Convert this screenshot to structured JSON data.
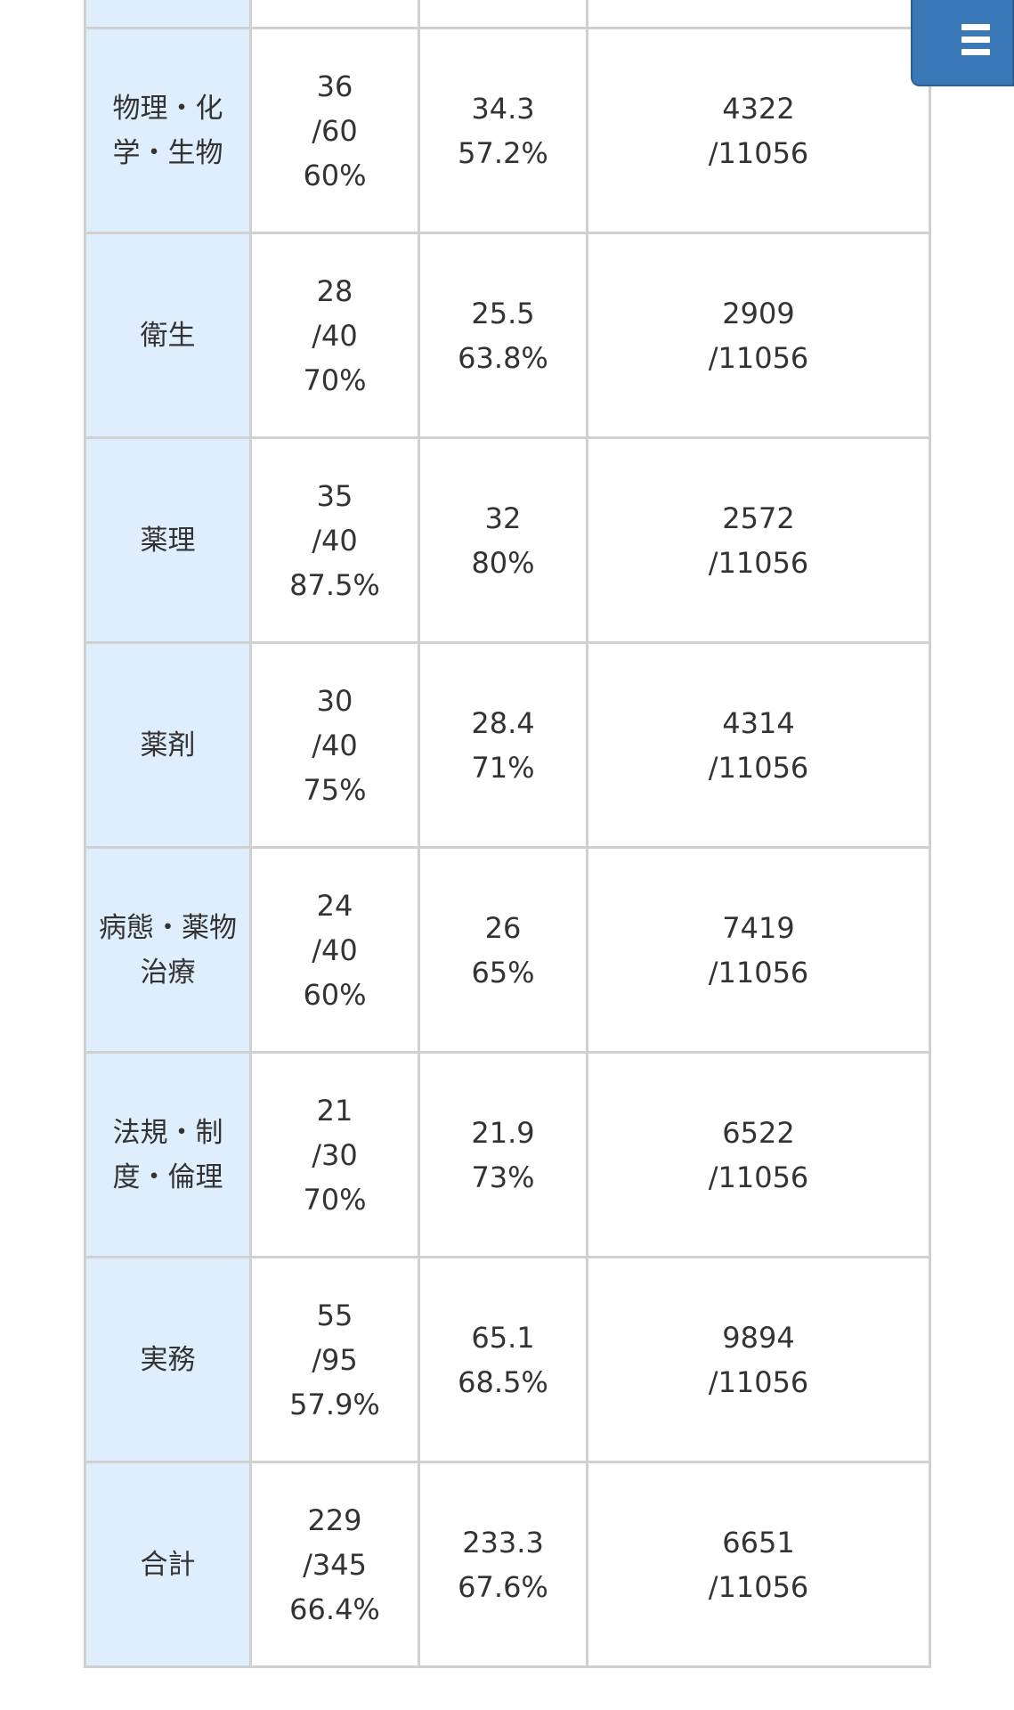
{
  "rows": [
    {
      "subject": [
        "",
        ""
      ],
      "score": [
        "",
        "",
        ""
      ],
      "average": [
        "",
        ""
      ],
      "rank": [
        "",
        ""
      ]
    },
    {
      "subject": [
        "物理・化",
        "学・生物"
      ],
      "score": [
        "36",
        "/60",
        "60%"
      ],
      "average": [
        "34.3",
        "57.2%"
      ],
      "rank": [
        "4322",
        "/11056"
      ]
    },
    {
      "subject": [
        "衛生",
        ""
      ],
      "score": [
        "28",
        "/40",
        "70%"
      ],
      "average": [
        "25.5",
        "63.8%"
      ],
      "rank": [
        "2909",
        "/11056"
      ]
    },
    {
      "subject": [
        "薬理",
        ""
      ],
      "score": [
        "35",
        "/40",
        "87.5%"
      ],
      "average": [
        "32",
        "80%"
      ],
      "rank": [
        "2572",
        "/11056"
      ]
    },
    {
      "subject": [
        "薬剤",
        ""
      ],
      "score": [
        "30",
        "/40",
        "75%"
      ],
      "average": [
        "28.4",
        "71%"
      ],
      "rank": [
        "4314",
        "/11056"
      ]
    },
    {
      "subject": [
        "病態・薬物",
        "治療"
      ],
      "score": [
        "24",
        "/40",
        "60%"
      ],
      "average": [
        "26",
        "65%"
      ],
      "rank": [
        "7419",
        "/11056"
      ]
    },
    {
      "subject": [
        "法規・制",
        "度・倫理"
      ],
      "score": [
        "21",
        "/30",
        "70%"
      ],
      "average": [
        "21.9",
        "73%"
      ],
      "rank": [
        "6522",
        "/11056"
      ]
    },
    {
      "subject": [
        "実務",
        ""
      ],
      "score": [
        "55",
        "/95",
        "57.9%"
      ],
      "average": [
        "65.1",
        "68.5%"
      ],
      "rank": [
        "9894",
        "/11056"
      ]
    },
    {
      "subject": [
        "合計",
        ""
      ],
      "score": [
        "229",
        "/345",
        "66.4%"
      ],
      "average": [
        "233.3",
        "67.6%"
      ],
      "rank": [
        "6651",
        "/11056"
      ]
    }
  ],
  "menu_button": {
    "icon": "hamburger-menu-icon",
    "color": "#3a78b8"
  },
  "colors": {
    "header_cell": "#dfeefd",
    "border": "#d0d0d0"
  }
}
